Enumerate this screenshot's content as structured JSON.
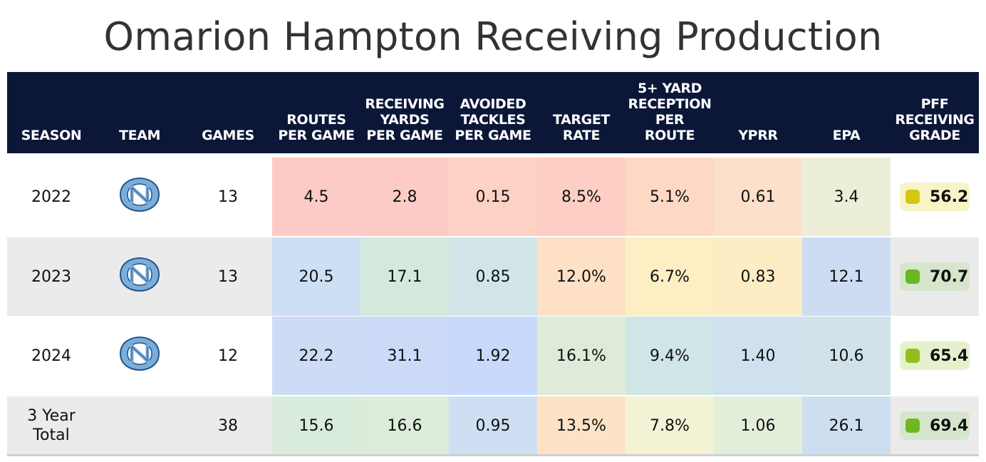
{
  "title": "Omarion Hampton Receiving Production",
  "headers": {
    "season": "SEASON",
    "team": "TEAM",
    "games": "GAMES",
    "routes": [
      "ROUTES",
      "PER GAME"
    ],
    "rec_yards": [
      "RECEIVING",
      "YARDS",
      "PER GAME"
    ],
    "avoided": [
      "AVOIDED",
      "TACKLES",
      "PER GAME"
    ],
    "target_rate": [
      "TARGET",
      "RATE"
    ],
    "five_plus": [
      "5+ YARD",
      "RECEPTION",
      "PER",
      "ROUTE"
    ],
    "yprr": "YPRR",
    "epa": "EPA",
    "grade": [
      "PFF",
      "RECEIVING",
      "GRADE"
    ]
  },
  "team_logo_icon": "unc-nc-logo-icon",
  "colors": {
    "header_bg": "#0c1738",
    "row_alt_bg": "#ebebeb",
    "logo_blue": "#7baddb"
  },
  "chart_data": {
    "type": "table",
    "title": "Omarion Hampton Receiving Production",
    "columns": [
      "SEASON",
      "TEAM",
      "GAMES",
      "ROUTES PER GAME",
      "RECEIVING YARDS PER GAME",
      "AVOIDED TACKLES PER GAME",
      "TARGET RATE",
      "5+ YARD RECEPTION PER ROUTE",
      "YPRR",
      "EPA",
      "PFF RECEIVING GRADE"
    ],
    "rows": [
      {
        "season": "2022",
        "team": "UNC",
        "games": "13",
        "routes": "4.5",
        "rec_yards": "2.8",
        "avoided": "0.15",
        "target_rate": "8.5%",
        "five_plus": "5.1%",
        "yprr": "0.61",
        "epa": "3.4",
        "grade": "56.2",
        "colors": {
          "routes": "#fdcbc5",
          "rec_yards": "#fdcbc5",
          "avoided": "#fdd1c4",
          "target_rate": "#fdcec4",
          "five_plus": "#fdd8c5",
          "yprr": "#fde0c9",
          "epa": "#eceed8"
        },
        "grade_dot": "#d6c711",
        "grade_bg": "#f7f4c8"
      },
      {
        "season": "2023",
        "team": "UNC",
        "games": "13",
        "routes": "20.5",
        "rec_yards": "17.1",
        "avoided": "0.85",
        "target_rate": "12.0%",
        "five_plus": "6.7%",
        "yprr": "0.83",
        "epa": "12.1",
        "grade": "70.7",
        "colors": {
          "routes": "#cddff4",
          "rec_yards": "#d4e9db",
          "avoided": "#d1e5e9",
          "target_rate": "#fde0c6",
          "five_plus": "#fdeec3",
          "yprr": "#fdecc4",
          "epa": "#cddcf3"
        },
        "grade_dot": "#68b621",
        "grade_bg": "#d6e6cc"
      },
      {
        "season": "2024",
        "team": "UNC",
        "games": "12",
        "routes": "22.2",
        "rec_yards": "31.1",
        "avoided": "1.92",
        "target_rate": "16.1%",
        "five_plus": "9.4%",
        "yprr": "1.40",
        "epa": "10.6",
        "grade": "65.4",
        "colors": {
          "routes": "#cddcf4",
          "rec_yards": "#cbdaf6",
          "avoided": "#c8d9fb",
          "target_rate": "#deebd8",
          "five_plus": "#cfe5e6",
          "yprr": "#cfe1ee",
          "epa": "#d1e2ea"
        },
        "grade_dot": "#93bd18",
        "grade_bg": "#e5f1cd"
      },
      {
        "season": "3 Year Total",
        "team": "",
        "games": "38",
        "routes": "15.6",
        "rec_yards": "16.6",
        "avoided": "0.95",
        "target_rate": "13.5%",
        "five_plus": "7.8%",
        "yprr": "1.06",
        "epa": "26.1",
        "grade": "69.4",
        "colors": {
          "routes": "#d9ebda",
          "rec_yards": "#dbecd9",
          "avoided": "#cfdff3",
          "target_rate": "#fde2c6",
          "five_plus": "#f4f2d5",
          "yprr": "#e3eedb",
          "epa": "#cedef1"
        },
        "grade_dot": "#70b621",
        "grade_bg": "#d6e6cc"
      }
    ]
  }
}
